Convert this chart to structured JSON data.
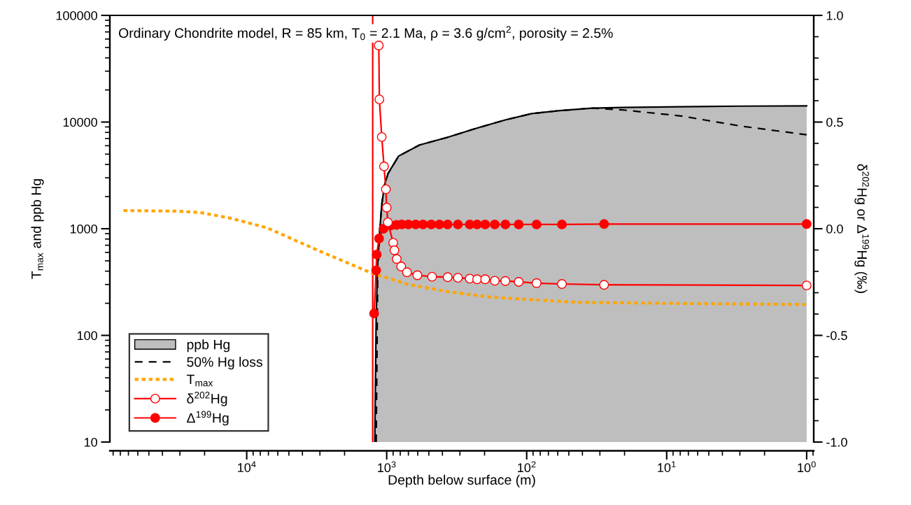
{
  "chart_data": {
    "type": "line",
    "title": "Ordinary Chondrite model, R = 85 km, T$_{0}$ = 2.1 Ma, ρ = 3.6 g/cm$^{2}$, porosity = 2.5%",
    "xlabel": "Depth below surface (m)",
    "ylabel": "T$_{max}$ and ppb Hg",
    "y2label": "δ$^{202}$Hg or Δ$^{199}$Hg (‰)",
    "log": "xy",
    "grid": false,
    "legend": "bottom left",
    "xlim": [
      95000,
      0.89
    ],
    "xticks": [
      {
        "value": 10000,
        "label": "10$^{4}$"
      },
      {
        "value": 1000,
        "label": "10$^{3}$"
      },
      {
        "value": 100,
        "label": "10$^{2}$"
      },
      {
        "value": 10,
        "label": "10$^{1}$"
      },
      {
        "value": 1,
        "label": "10$^{0}$"
      }
    ],
    "ylim": [
      10,
      100000
    ],
    "yticks": [
      10,
      100,
      1000,
      10000,
      100000
    ],
    "y2lim": [
      -1,
      1
    ],
    "y2ticks": [
      {
        "value": -1,
        "label": "-1.0"
      },
      {
        "value": -0.5,
        "label": "-0.5"
      },
      {
        "value": 0,
        "label": "0.0"
      },
      {
        "value": 0.5,
        "label": "0.5"
      },
      {
        "value": 1,
        "label": "1.0"
      }
    ],
    "ref_lines": [
      {
        "axis": "x",
        "value": 1259,
        "label": null,
        "color": "#ff0000",
        "line_style": "solid"
      }
    ],
    "series": [
      {
        "name": "ppb Hg",
        "type": "area",
        "color": "#bebebe",
        "x": [
          1216,
          1189,
          1161,
          1122,
          1084,
          1035,
          977,
          822,
          582,
          367,
          232,
          141,
          92,
          58,
          34,
          20.6,
          7.9,
          3.0,
          1
        ],
        "values": [
          10,
          150,
          450,
          950,
          1700,
          2600,
          3300,
          4800,
          6100,
          7200,
          8700,
          10500,
          12000,
          12800,
          13500,
          13700,
          13900,
          14100,
          14200
        ]
      },
      {
        "name": "50% Hg loss",
        "color": "#000000",
        "line_style": "dashed",
        "x": [
          1189,
          1161,
          1122,
          1084,
          1035,
          977,
          822,
          582,
          367,
          232,
          141,
          92,
          58,
          34,
          20.6,
          7.9,
          3.0,
          1
        ],
        "values": [
          10,
          300,
          950,
          1700,
          2600,
          3300,
          4800,
          6100,
          7200,
          8700,
          10500,
          12000,
          12800,
          13500,
          13000,
          11400,
          9200,
          7600
        ]
      },
      {
        "name": "T$_{max}$",
        "color": "#ffa500",
        "line_style": "dotted",
        "x": [
          75900,
          31300,
          21600,
          13200,
          7160,
          3130,
          1300,
          700,
          367,
          180,
          42.5,
          4.9,
          1
        ],
        "values": [
          1480,
          1460,
          1420,
          1260,
          1020,
          630,
          387,
          300,
          257,
          228,
          204,
          198,
          195
        ]
      },
      {
        "name": "δ$^{202}$Hg",
        "axis": "y2",
        "color": "#ff0000",
        "marker": "circle-open",
        "x": [
          1139,
          1128,
          1085,
          1045,
          1014,
          1000,
          981,
          899,
          881,
          848,
          788,
          716,
          604,
          474,
          367,
          310,
          255,
          226,
          198,
          169,
          142,
          114,
          85,
          56,
          28,
          1
        ],
        "values": [
          0.859,
          0.606,
          0.43,
          0.292,
          0.185,
          0.099,
          0.03,
          -0.066,
          -0.101,
          -0.142,
          -0.177,
          -0.204,
          -0.218,
          -0.225,
          -0.227,
          -0.23,
          -0.234,
          -0.237,
          -0.237,
          -0.244,
          -0.245,
          -0.249,
          -0.255,
          -0.259,
          -0.263,
          -0.266
        ]
      },
      {
        "name": "Δ$^{199}$Hg",
        "axis": "y2",
        "color": "#ff0000",
        "marker": "circle",
        "x": [
          1230,
          1190,
          1179,
          1134,
          1054,
          934,
          850,
          780,
          700,
          620,
          550,
          480,
          420,
          367,
          310,
          255,
          226,
          198,
          169,
          142,
          114,
          85,
          56,
          28,
          1
        ],
        "values": [
          -0.397,
          -0.195,
          -0.121,
          -0.046,
          0.0,
          0.015,
          0.018,
          0.02,
          0.02,
          0.02,
          0.02,
          0.02,
          0.02,
          0.02,
          0.02,
          0.02,
          0.02,
          0.02,
          0.02,
          0.02,
          0.02,
          0.02,
          0.02,
          0.022,
          0.022
        ]
      }
    ]
  }
}
